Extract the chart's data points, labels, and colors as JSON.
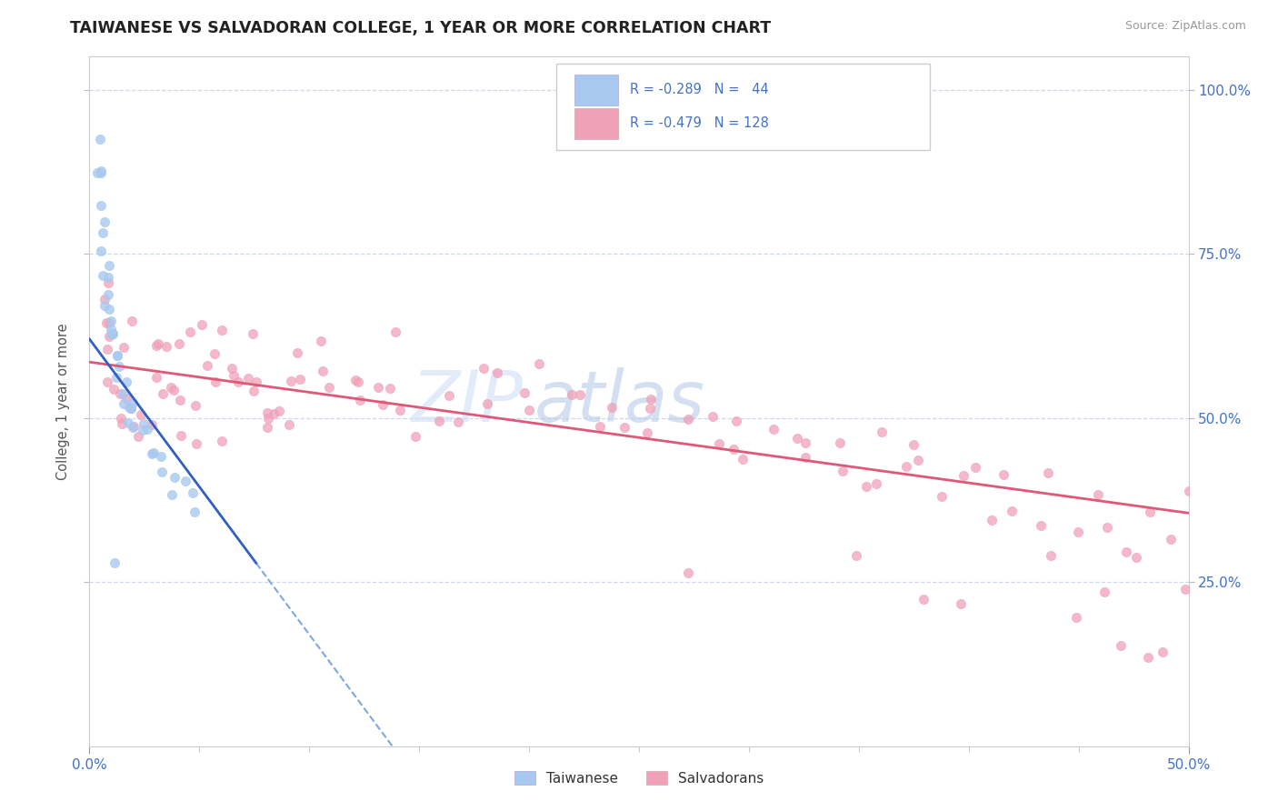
{
  "title": "TAIWANESE VS SALVADORAN COLLEGE, 1 YEAR OR MORE CORRELATION CHART",
  "source_text": "Source: ZipAtlas.com",
  "ylabel": "College, 1 year or more",
  "right_yticks": [
    "100.0%",
    "75.0%",
    "50.0%",
    "25.0%"
  ],
  "right_ytick_vals": [
    1.0,
    0.75,
    0.5,
    0.25
  ],
  "color_taiwanese": "#a8c8f0",
  "color_salvadoran": "#f0a0b8",
  "color_trendline_taiwanese_solid": "#3060c0",
  "color_trendline_taiwanese_dashed": "#80a8e0",
  "color_trendline_salvadoran": "#e05878",
  "xmin": 0.0,
  "xmax": 0.5,
  "ymin": 0.0,
  "ymax": 1.05,
  "background_color": "#ffffff",
  "grid_color": "#d0d8ec",
  "title_color": "#222222",
  "axis_label_color": "#4472c4",
  "source_color": "#999999",
  "tw_trend_solid_x0": 0.0,
  "tw_trend_solid_x1": 0.055,
  "tw_trend_intercept": 0.62,
  "tw_trend_slope": -4.5,
  "sal_trend_x0": 0.0,
  "sal_trend_x1": 0.5,
  "sal_trend_y0": 0.585,
  "sal_trend_y1": 0.355,
  "taiwanese_x": [
    0.003,
    0.004,
    0.005,
    0.005,
    0.006,
    0.006,
    0.007,
    0.007,
    0.008,
    0.008,
    0.009,
    0.009,
    0.01,
    0.01,
    0.011,
    0.011,
    0.012,
    0.012,
    0.013,
    0.014,
    0.015,
    0.015,
    0.016,
    0.017,
    0.018,
    0.019,
    0.02,
    0.022,
    0.023,
    0.025,
    0.027,
    0.028,
    0.03,
    0.032,
    0.035,
    0.038,
    0.04,
    0.042,
    0.045,
    0.048,
    0.005,
    0.007,
    0.009,
    0.012
  ],
  "taiwanese_y": [
    0.95,
    0.9,
    0.87,
    0.84,
    0.82,
    0.79,
    0.77,
    0.75,
    0.73,
    0.71,
    0.69,
    0.67,
    0.65,
    0.64,
    0.63,
    0.61,
    0.6,
    0.59,
    0.58,
    0.57,
    0.56,
    0.55,
    0.54,
    0.53,
    0.52,
    0.51,
    0.5,
    0.49,
    0.48,
    0.47,
    0.46,
    0.45,
    0.44,
    0.43,
    0.42,
    0.41,
    0.4,
    0.39,
    0.38,
    0.37,
    0.72,
    0.68,
    0.64,
    0.26
  ],
  "salvadoran_x": [
    0.004,
    0.005,
    0.006,
    0.007,
    0.008,
    0.009,
    0.01,
    0.011,
    0.012,
    0.014,
    0.015,
    0.016,
    0.017,
    0.018,
    0.019,
    0.02,
    0.022,
    0.024,
    0.026,
    0.028,
    0.03,
    0.032,
    0.034,
    0.036,
    0.038,
    0.04,
    0.042,
    0.045,
    0.048,
    0.05,
    0.053,
    0.055,
    0.058,
    0.06,
    0.063,
    0.065,
    0.068,
    0.07,
    0.073,
    0.075,
    0.078,
    0.08,
    0.083,
    0.085,
    0.088,
    0.09,
    0.095,
    0.1,
    0.105,
    0.11,
    0.115,
    0.12,
    0.125,
    0.13,
    0.135,
    0.14,
    0.145,
    0.15,
    0.16,
    0.17,
    0.18,
    0.19,
    0.2,
    0.21,
    0.22,
    0.23,
    0.24,
    0.25,
    0.26,
    0.27,
    0.28,
    0.29,
    0.3,
    0.31,
    0.32,
    0.33,
    0.34,
    0.35,
    0.36,
    0.37,
    0.38,
    0.39,
    0.4,
    0.41,
    0.42,
    0.43,
    0.44,
    0.45,
    0.46,
    0.47,
    0.48,
    0.49,
    0.5,
    0.03,
    0.04,
    0.05,
    0.06,
    0.08,
    0.1,
    0.12,
    0.14,
    0.16,
    0.18,
    0.2,
    0.22,
    0.24,
    0.26,
    0.28,
    0.3,
    0.32,
    0.34,
    0.36,
    0.38,
    0.4,
    0.42,
    0.44,
    0.46,
    0.48,
    0.5,
    0.27,
    0.35,
    0.38,
    0.4,
    0.45,
    0.46,
    0.47,
    0.48,
    0.49
  ],
  "salvadoran_y": [
    0.72,
    0.68,
    0.65,
    0.63,
    0.6,
    0.58,
    0.56,
    0.55,
    0.54,
    0.53,
    0.52,
    0.51,
    0.5,
    0.63,
    0.49,
    0.62,
    0.48,
    0.47,
    0.6,
    0.46,
    0.58,
    0.57,
    0.55,
    0.54,
    0.53,
    0.52,
    0.51,
    0.63,
    0.5,
    0.49,
    0.61,
    0.48,
    0.6,
    0.59,
    0.58,
    0.57,
    0.56,
    0.55,
    0.54,
    0.53,
    0.52,
    0.51,
    0.5,
    0.49,
    0.48,
    0.47,
    0.6,
    0.59,
    0.58,
    0.57,
    0.56,
    0.55,
    0.54,
    0.53,
    0.52,
    0.51,
    0.5,
    0.49,
    0.48,
    0.47,
    0.59,
    0.58,
    0.57,
    0.56,
    0.55,
    0.54,
    0.53,
    0.52,
    0.51,
    0.5,
    0.49,
    0.48,
    0.47,
    0.46,
    0.45,
    0.44,
    0.43,
    0.42,
    0.41,
    0.4,
    0.39,
    0.38,
    0.37,
    0.36,
    0.35,
    0.34,
    0.33,
    0.32,
    0.31,
    0.3,
    0.29,
    0.28,
    0.27,
    0.65,
    0.63,
    0.61,
    0.6,
    0.62,
    0.58,
    0.57,
    0.56,
    0.55,
    0.54,
    0.53,
    0.52,
    0.51,
    0.5,
    0.49,
    0.48,
    0.47,
    0.46,
    0.45,
    0.44,
    0.43,
    0.42,
    0.41,
    0.4,
    0.39,
    0.38,
    0.3,
    0.28,
    0.26,
    0.22,
    0.2,
    0.19,
    0.18,
    0.17,
    0.16
  ]
}
